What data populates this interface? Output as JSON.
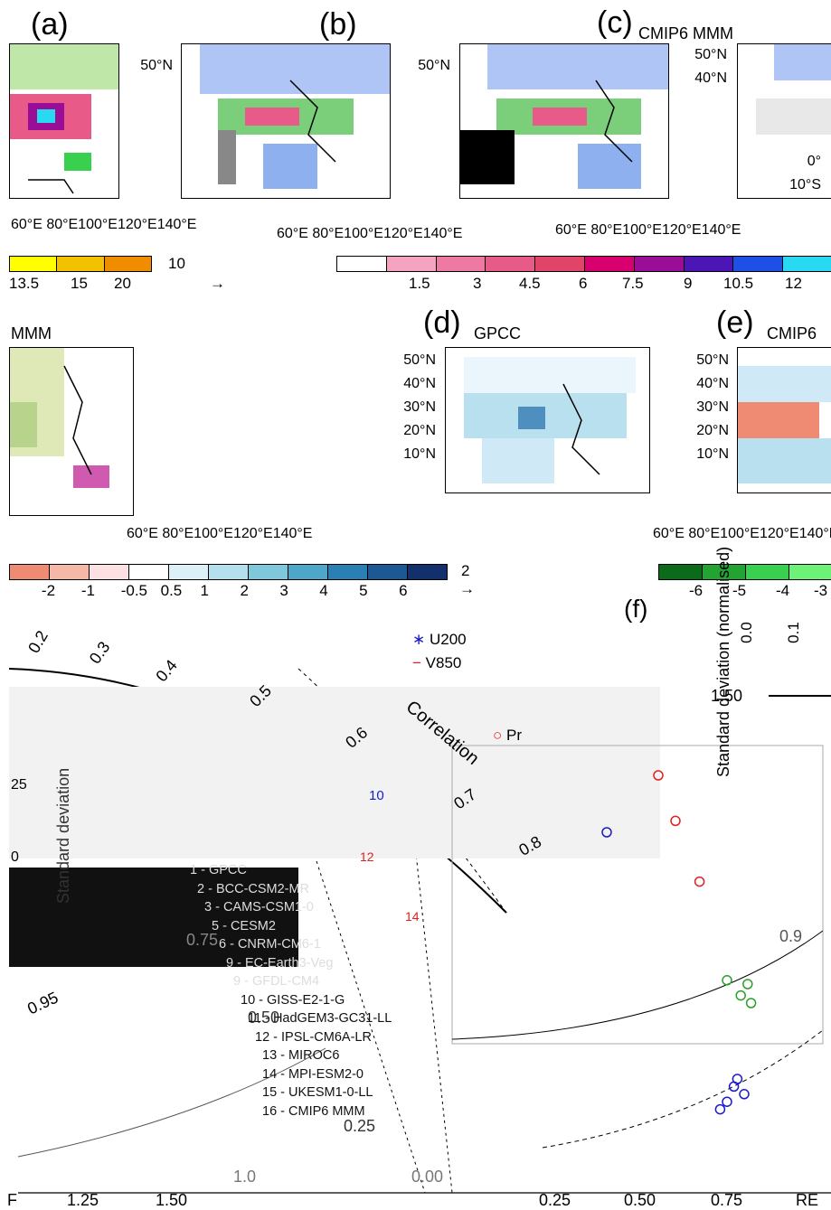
{
  "panels": [
    {
      "id": "a",
      "label": "(a)",
      "title": ""
    },
    {
      "id": "b",
      "label": "(b)",
      "title": ""
    },
    {
      "id": "c",
      "label": "(c)",
      "title": "CMIP6 MMM"
    },
    {
      "id": "a2",
      "label": "",
      "title": "MMM"
    },
    {
      "id": "d",
      "label": "(d)",
      "title": "GPCC"
    },
    {
      "id": "e",
      "label": "(e)",
      "title": "CMIP6"
    },
    {
      "id": "f",
      "label": "(f)",
      "title": ""
    }
  ],
  "map_ticks": {
    "lat": [
      "50°N",
      "40°N",
      "30°N",
      "20°N",
      "10°N",
      "0°",
      "10°S"
    ],
    "lon_row1": "60°E 80°E100°E120°E140°E",
    "lon_row2": "60°E 80°E100°E120°E140°E"
  },
  "colorbars": {
    "cb1_ticks": [
      "13.5",
      "15",
      "20"
    ],
    "cb1_vector": "10",
    "cb2_ticks": [
      "1.5",
      "3",
      "4.5",
      "6",
      "7.5",
      "9",
      "10.5",
      "12"
    ],
    "cb2_colors": [
      "#ffffff",
      "#f4a3c0",
      "#ee7aa4",
      "#e85b88",
      "#e04468",
      "#d8006f",
      "#9a0d97",
      "#4b16b3",
      "#1e50e8",
      "#29d9f2"
    ],
    "cb3_ticks": [
      "-2",
      "-1",
      "-0.5",
      "0.5",
      "1",
      "2",
      "3",
      "4",
      "5",
      "6"
    ],
    "cb3_vector": "2",
    "cb3_colors": [
      "#ef8a73",
      "#f6b8a6",
      "#fde0e1",
      "#ffffff",
      "#dbf0f7",
      "#b3e0ec",
      "#7fc8dc",
      "#4ea7c8",
      "#2a7fb4",
      "#1b5894",
      "#12306b"
    ],
    "cb4_ticks": [
      "-6",
      "-5",
      "-4",
      "-3"
    ],
    "cb4_colors": [
      "#0a6b1a",
      "#23a332",
      "#39cf4f",
      "#6df176"
    ]
  },
  "taylor": {
    "legend_vars": [
      "U200",
      "V850",
      "Pr"
    ],
    "models": [
      "1 - GPCC",
      "2 - BCC-CSM2-MR",
      "3 - CAMS-CSM1-0",
      "5 - CESM2",
      "6 - CNRM-CM6-1",
      "9 - EC-Earth3-Veg",
      "9 - GFDL-CM4",
      "10 - GISS-E2-1-G",
      "11 - HadGEM3-GC31-LL",
      "12 - IPSL-CM6A-LR",
      "13 - MIROC6",
      "14 - MPI-ESM2-0",
      "15 - UKESM1-0-LL",
      "16 - CMIP6 MMM"
    ],
    "corr_label": "Correlation",
    "corr_ticks_left": [
      "0.2",
      "0.3",
      "0.4",
      "0.5",
      "0.6",
      "0.7",
      "0.8",
      "0.9",
      "0.95"
    ],
    "sd_ylabel": "Standard deviation (normalised)",
    "sd_label_left": "Standard deviation",
    "sd_ticks_left": [
      "0.75",
      "0.50",
      "0.25",
      "0.00"
    ],
    "sd_ticks_right": [
      "1.50"
    ],
    "corr_ticks_right": [
      "0.0",
      "0.1"
    ],
    "bottom_ticks": [
      "1.25",
      "1.50",
      "0.25",
      "0.50",
      "0.75"
    ],
    "left_edge_label": "F",
    "right_edge_label": "RE",
    "mid_axis_label": "1.0",
    "ytick_25": "25",
    "ytick_0": "0",
    "pt_num_10": "10",
    "pt_num_12": "12",
    "pt_num_14": "14"
  },
  "chart_data": {
    "type": "scatter",
    "title": "",
    "series": [
      {
        "name": "U200",
        "points": [
          [
            0.45,
            0.95
          ],
          [
            0.82,
            0.28
          ],
          [
            0.8,
            0.24
          ],
          [
            0.78,
            0.22
          ],
          [
            0.83,
            0.3
          ],
          [
            0.85,
            0.26
          ]
        ]
      },
      {
        "name": "V850",
        "points": [
          [
            0.86,
            0.55
          ],
          [
            0.8,
            0.56
          ],
          [
            0.84,
            0.52
          ],
          [
            0.87,
            0.5
          ]
        ]
      },
      {
        "name": "Pr",
        "points": [
          [
            0.6,
            1.1
          ],
          [
            0.65,
            0.98
          ],
          [
            0.72,
            0.82
          ]
        ]
      }
    ]
  }
}
